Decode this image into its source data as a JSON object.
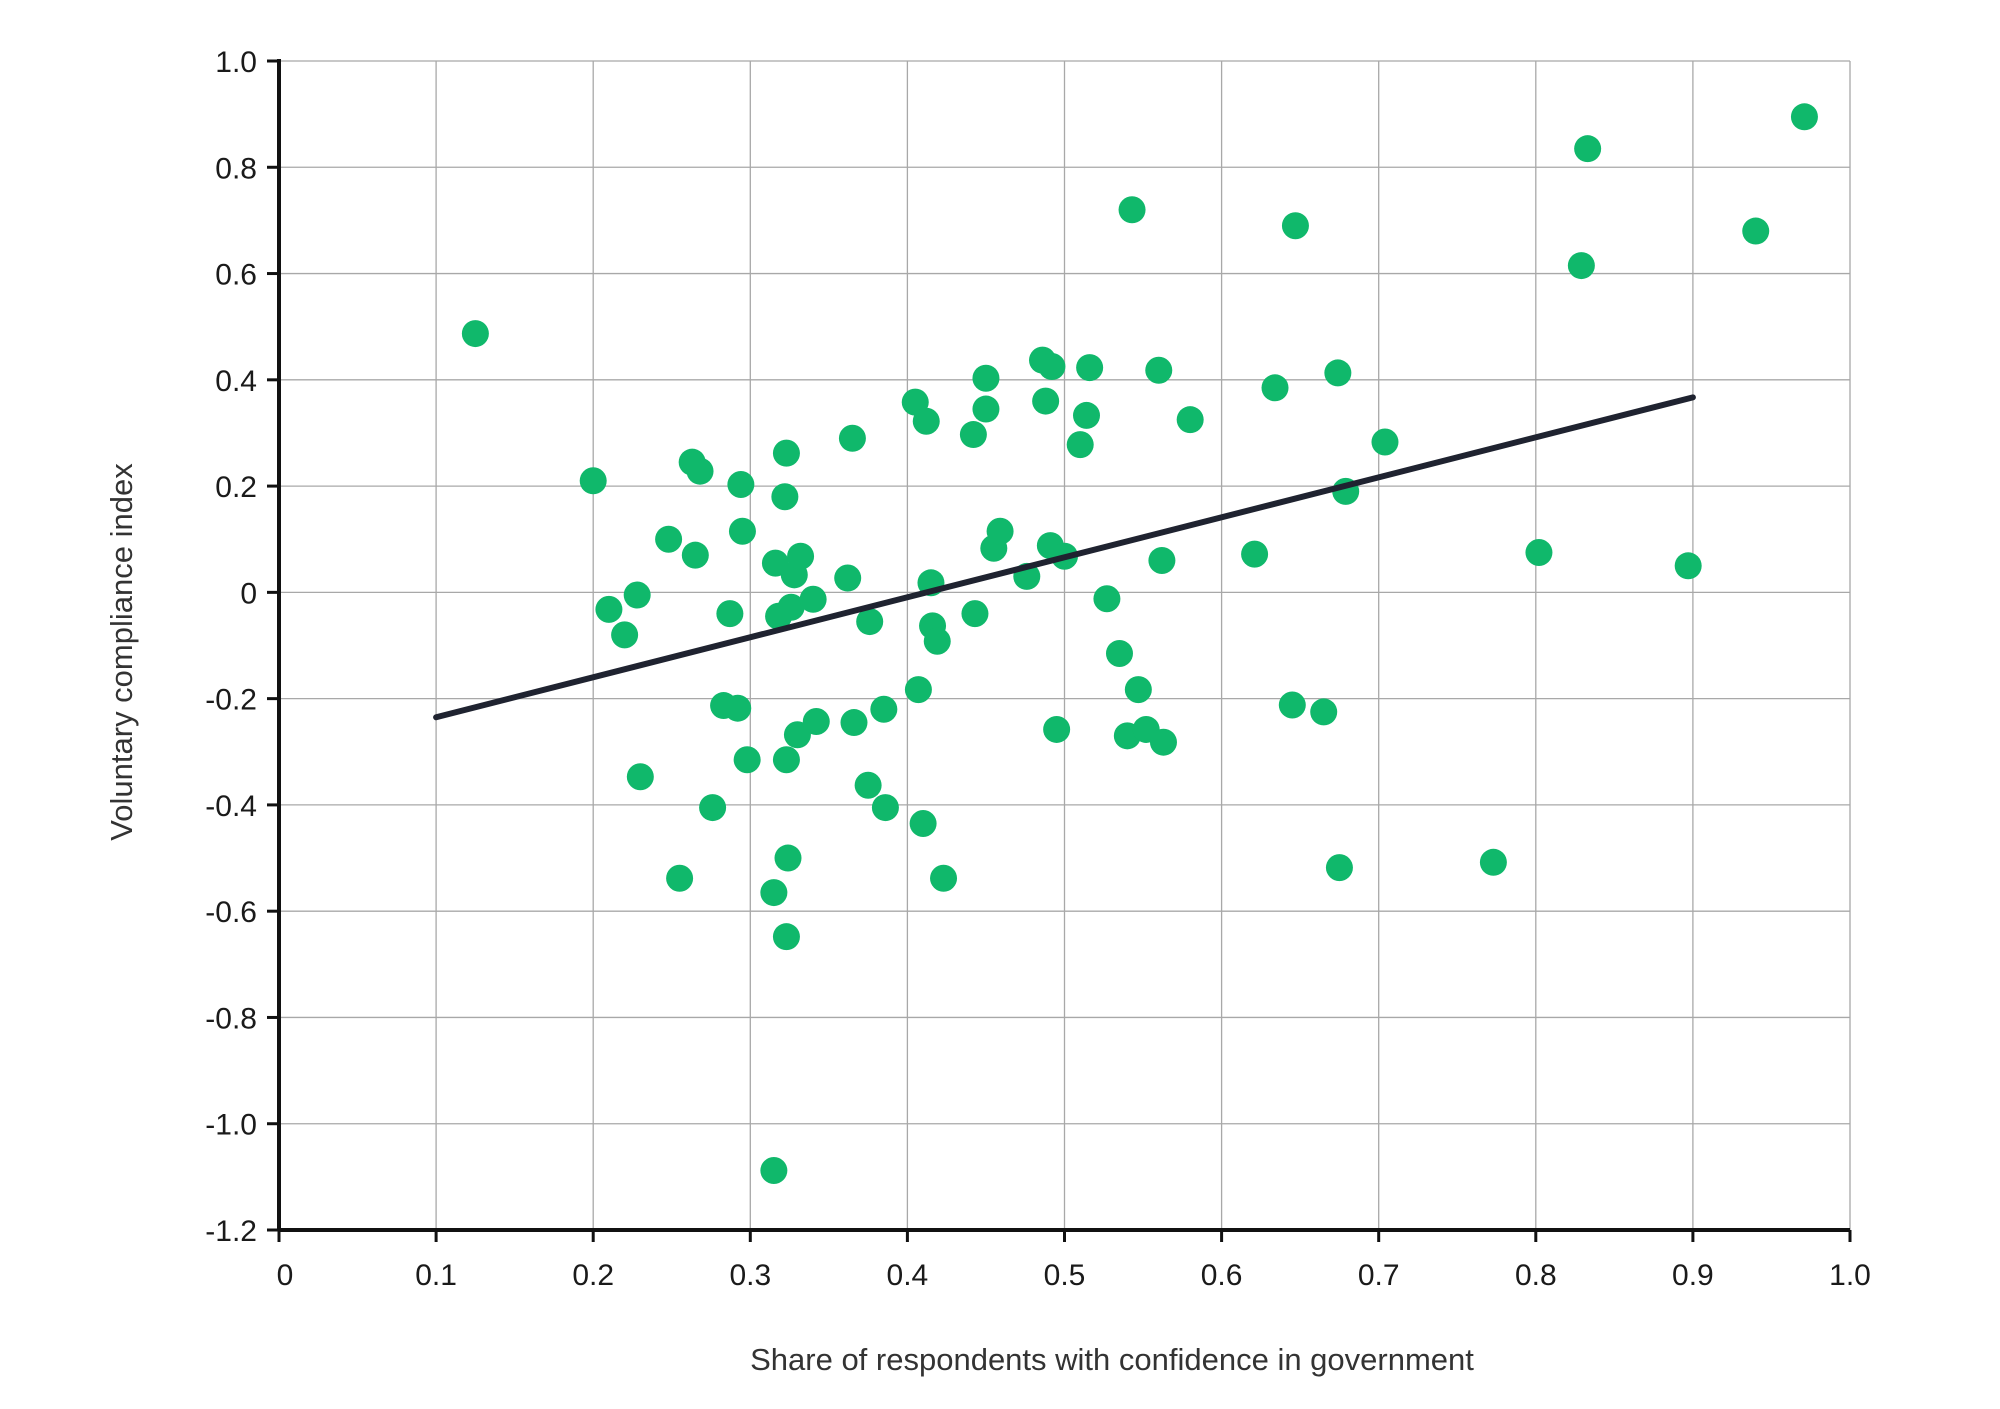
{
  "chart_data": {
    "type": "scatter",
    "title": "",
    "xlabel": "Share of respondents with confidence in government",
    "ylabel": "Voluntary compliance index",
    "xlim": [
      0,
      1.0
    ],
    "ylim": [
      -1.2,
      1.0
    ],
    "x_ticks": [
      0,
      0.1,
      0.2,
      0.3,
      0.4,
      0.5,
      0.6,
      0.7,
      0.8,
      0.9,
      1.0
    ],
    "x_tick_labels": [
      "0",
      "0.1",
      "0.2",
      "0.3",
      "0.4",
      "0.5",
      "0.6",
      "0.7",
      "0.8",
      "0.9",
      "1.0"
    ],
    "y_ticks": [
      1.0,
      0.8,
      0.6,
      0.4,
      0.2,
      0,
      -0.2,
      -0.4,
      -0.6,
      -0.8,
      -1.0,
      -1.2
    ],
    "y_tick_labels": [
      "1.0",
      "0.8",
      "0.6",
      "0.4",
      "0.2",
      "0",
      "-0.2",
      "-0.4",
      "-0.6",
      "-0.8",
      "-1.0",
      "-1.2"
    ],
    "grid": true,
    "colors": {
      "points": "#10b86b",
      "trend": "#1f2330",
      "grid": "#a8a8a8",
      "axis": "#111111"
    },
    "trendline": {
      "x": [
        0.1,
        0.9
      ],
      "y": [
        -0.235,
        0.367
      ]
    },
    "points": [
      {
        "x": 0.125,
        "y": 0.487
      },
      {
        "x": 0.2,
        "y": 0.21
      },
      {
        "x": 0.21,
        "y": -0.032
      },
      {
        "x": 0.22,
        "y": -0.08
      },
      {
        "x": 0.228,
        "y": -0.005
      },
      {
        "x": 0.23,
        "y": -0.347
      },
      {
        "x": 0.248,
        "y": 0.1
      },
      {
        "x": 0.255,
        "y": -0.538
      },
      {
        "x": 0.263,
        "y": 0.245
      },
      {
        "x": 0.265,
        "y": 0.07
      },
      {
        "x": 0.268,
        "y": 0.228
      },
      {
        "x": 0.276,
        "y": -0.405
      },
      {
        "x": 0.283,
        "y": -0.213
      },
      {
        "x": 0.287,
        "y": -0.04
      },
      {
        "x": 0.292,
        "y": -0.218
      },
      {
        "x": 0.294,
        "y": 0.203
      },
      {
        "x": 0.295,
        "y": 0.115
      },
      {
        "x": 0.298,
        "y": -0.315
      },
      {
        "x": 0.315,
        "y": -0.565
      },
      {
        "x": 0.315,
        "y": -1.088
      },
      {
        "x": 0.316,
        "y": 0.055
      },
      {
        "x": 0.318,
        "y": -0.045
      },
      {
        "x": 0.322,
        "y": 0.18
      },
      {
        "x": 0.323,
        "y": 0.262
      },
      {
        "x": 0.323,
        "y": -0.315
      },
      {
        "x": 0.323,
        "y": -0.648
      },
      {
        "x": 0.324,
        "y": -0.5
      },
      {
        "x": 0.326,
        "y": -0.028
      },
      {
        "x": 0.328,
        "y": 0.033
      },
      {
        "x": 0.33,
        "y": -0.268
      },
      {
        "x": 0.332,
        "y": 0.068
      },
      {
        "x": 0.34,
        "y": -0.013
      },
      {
        "x": 0.342,
        "y": -0.243
      },
      {
        "x": 0.362,
        "y": 0.027
      },
      {
        "x": 0.365,
        "y": 0.29
      },
      {
        "x": 0.366,
        "y": -0.245
      },
      {
        "x": 0.375,
        "y": -0.363
      },
      {
        "x": 0.376,
        "y": -0.055
      },
      {
        "x": 0.385,
        "y": -0.22
      },
      {
        "x": 0.386,
        "y": -0.405
      },
      {
        "x": 0.405,
        "y": 0.358
      },
      {
        "x": 0.407,
        "y": -0.183
      },
      {
        "x": 0.41,
        "y": -0.435
      },
      {
        "x": 0.412,
        "y": 0.322
      },
      {
        "x": 0.415,
        "y": 0.018
      },
      {
        "x": 0.416,
        "y": -0.063
      },
      {
        "x": 0.419,
        "y": -0.092
      },
      {
        "x": 0.423,
        "y": -0.538
      },
      {
        "x": 0.442,
        "y": 0.297
      },
      {
        "x": 0.443,
        "y": -0.04
      },
      {
        "x": 0.45,
        "y": 0.403
      },
      {
        "x": 0.45,
        "y": 0.345
      },
      {
        "x": 0.455,
        "y": 0.083
      },
      {
        "x": 0.459,
        "y": 0.115
      },
      {
        "x": 0.476,
        "y": 0.03
      },
      {
        "x": 0.486,
        "y": 0.437
      },
      {
        "x": 0.488,
        "y": 0.36
      },
      {
        "x": 0.491,
        "y": 0.088
      },
      {
        "x": 0.492,
        "y": 0.425
      },
      {
        "x": 0.495,
        "y": -0.258
      },
      {
        "x": 0.5,
        "y": 0.068
      },
      {
        "x": 0.51,
        "y": 0.278
      },
      {
        "x": 0.514,
        "y": 0.333
      },
      {
        "x": 0.516,
        "y": 0.423
      },
      {
        "x": 0.527,
        "y": -0.012
      },
      {
        "x": 0.535,
        "y": -0.115
      },
      {
        "x": 0.54,
        "y": -0.27
      },
      {
        "x": 0.543,
        "y": 0.72
      },
      {
        "x": 0.547,
        "y": -0.183
      },
      {
        "x": 0.552,
        "y": -0.258
      },
      {
        "x": 0.56,
        "y": 0.418
      },
      {
        "x": 0.562,
        "y": 0.06
      },
      {
        "x": 0.563,
        "y": -0.282
      },
      {
        "x": 0.58,
        "y": 0.325
      },
      {
        "x": 0.621,
        "y": 0.072
      },
      {
        "x": 0.634,
        "y": 0.385
      },
      {
        "x": 0.645,
        "y": -0.212
      },
      {
        "x": 0.647,
        "y": 0.69
      },
      {
        "x": 0.665,
        "y": -0.225
      },
      {
        "x": 0.674,
        "y": 0.413
      },
      {
        "x": 0.675,
        "y": -0.518
      },
      {
        "x": 0.679,
        "y": 0.19
      },
      {
        "x": 0.704,
        "y": 0.283
      },
      {
        "x": 0.773,
        "y": -0.508
      },
      {
        "x": 0.802,
        "y": 0.075
      },
      {
        "x": 0.829,
        "y": 0.615
      },
      {
        "x": 0.833,
        "y": 0.835
      },
      {
        "x": 0.897,
        "y": 0.05
      },
      {
        "x": 0.94,
        "y": 0.68
      },
      {
        "x": 0.971,
        "y": 0.895
      }
    ]
  }
}
